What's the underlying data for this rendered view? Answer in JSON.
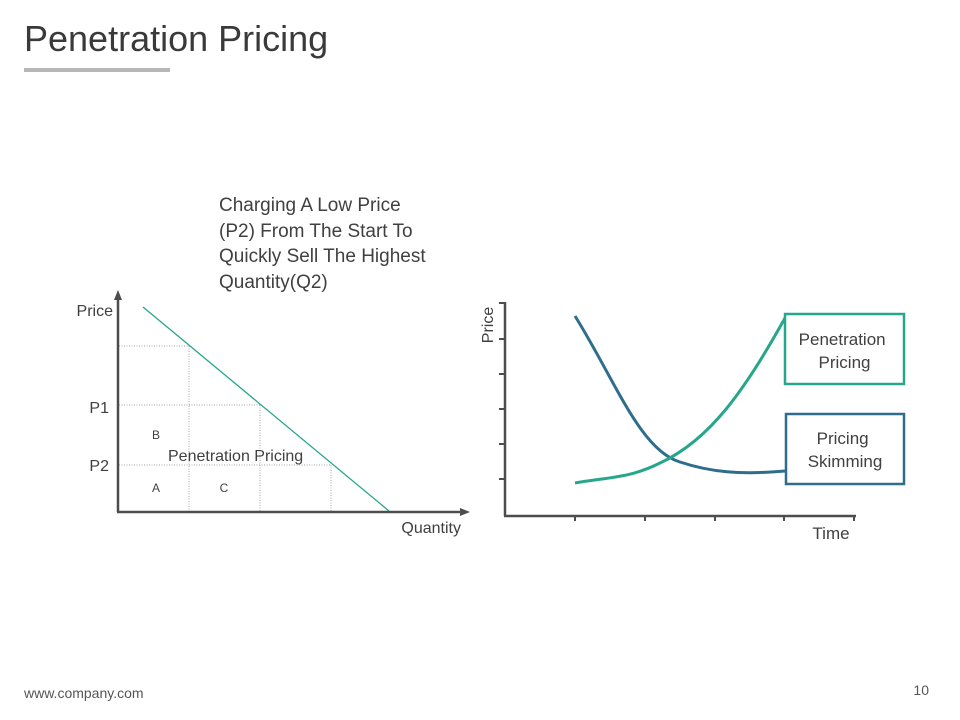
{
  "slide": {
    "title": "Penetration Pricing",
    "description": "Charging A Low Price\n(P2) From The Start To\nQuickly Sell The Highest\nQuantity(Q2)",
    "footer_url": "www.company.com",
    "page_number": "10"
  },
  "left_diagram": {
    "y_axis_label": "Price",
    "x_axis_label": "Quantity",
    "p1_label": "P1",
    "p2_label": "P2",
    "region_b": "B",
    "region_a": "A",
    "region_c": "C",
    "area_label": "Penetration Pricing"
  },
  "right_diagram": {
    "y_axis_label": "Price",
    "x_axis_label": "Time",
    "legend_penetration": "Penetration\nPricing",
    "legend_skimming": "Pricing\nSkimming"
  },
  "colors": {
    "teal": "#26a68a",
    "navy": "#2e6e8c",
    "axis": "#4d4d4d",
    "grid": "#a6a6a6"
  }
}
